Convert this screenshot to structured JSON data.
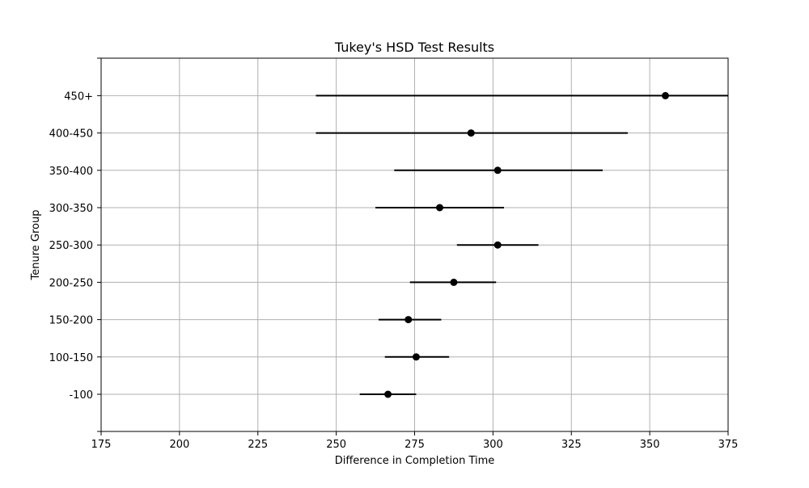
{
  "chart_data": {
    "type": "scatter",
    "title": "Tukey's HSD Test Results",
    "xlabel": "Difference in Completion Time",
    "ylabel": "Tenure Group",
    "xlim": [
      175,
      375
    ],
    "x_ticks": [
      "175",
      "200",
      "225",
      "250",
      "275",
      "300",
      "325",
      "350",
      "375"
    ],
    "grid": true,
    "categories": [
      "-100",
      "100-150",
      "150-200",
      "200-250",
      "250-300",
      "300-350",
      "350-400",
      "400-450",
      "450+"
    ],
    "series": [
      {
        "mean": [
          266.5,
          275.5,
          273,
          287.5,
          301.5,
          283,
          301.5,
          293,
          355
        ],
        "lower": [
          257.5,
          265.5,
          263.5,
          273.5,
          288.5,
          262.5,
          268.5,
          243.5,
          243.5
        ],
        "upper": [
          275.5,
          286,
          283.5,
          301,
          314.5,
          303.5,
          335,
          343,
          375
        ]
      }
    ],
    "colors": {
      "points": "#000000",
      "grid": "#b0b0b0",
      "axes": "#000000"
    }
  }
}
